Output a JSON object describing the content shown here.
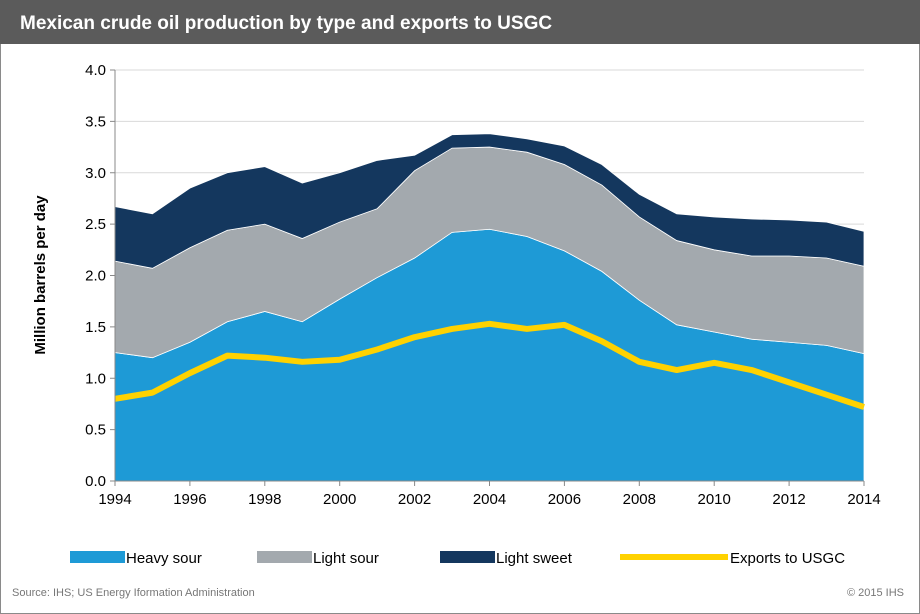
{
  "chart_data": {
    "type": "stacked_area_line",
    "title": "Mexican crude oil production by type and exports to USGC",
    "y_label": "Million barrels per day",
    "source": "Source: IHS; US Energy Iformation Administration",
    "copyright": "© 2015 IHS",
    "x": [
      1994,
      1995,
      1996,
      1997,
      1998,
      1999,
      2000,
      2001,
      2002,
      2003,
      2004,
      2005,
      2006,
      2007,
      2008,
      2009,
      2010,
      2011,
      2012,
      2013,
      2014
    ],
    "xlim": [
      1994,
      2014
    ],
    "xticks": [
      1994,
      1996,
      1998,
      2000,
      2002,
      2004,
      2006,
      2008,
      2010,
      2012,
      2014
    ],
    "ylim": [
      0,
      4
    ],
    "yticks": [
      {
        "value": 0,
        "label": "0.0"
      },
      0.5,
      {
        "value": 1,
        "label": "1.0"
      },
      1.5,
      {
        "value": 2,
        "label": "2.0"
      },
      2.5,
      {
        "value": 3,
        "label": "3.0"
      },
      3.5,
      {
        "value": 4,
        "label": "4.0"
      }
    ],
    "grid": true,
    "series": [
      {
        "name": "Heavy sour",
        "kind": "area",
        "color": "#1e9ad6",
        "values": [
          1.25,
          1.2,
          1.35,
          1.55,
          1.65,
          1.55,
          1.77,
          1.98,
          2.17,
          2.42,
          2.45,
          2.38,
          2.24,
          2.04,
          1.76,
          1.52,
          1.45,
          1.38,
          1.35,
          1.32,
          1.24
        ]
      },
      {
        "name": "Light sour",
        "kind": "area",
        "color": "#a3a9ae",
        "values": [
          0.89,
          0.87,
          0.92,
          0.89,
          0.85,
          0.81,
          0.75,
          0.67,
          0.85,
          0.82,
          0.8,
          0.82,
          0.84,
          0.84,
          0.81,
          0.82,
          0.8,
          0.81,
          0.84,
          0.85,
          0.85
        ]
      },
      {
        "name": "Light sweet",
        "kind": "area",
        "color": "#14375e",
        "values": [
          0.53,
          0.53,
          0.58,
          0.56,
          0.56,
          0.54,
          0.48,
          0.47,
          0.15,
          0.13,
          0.13,
          0.13,
          0.18,
          0.2,
          0.22,
          0.26,
          0.32,
          0.36,
          0.35,
          0.35,
          0.34
        ]
      },
      {
        "name": "Exports to USGC",
        "kind": "line",
        "color": "#ffd200",
        "values": [
          0.8,
          0.86,
          1.05,
          1.22,
          1.2,
          1.16,
          1.18,
          1.28,
          1.4,
          1.48,
          1.53,
          1.48,
          1.52,
          1.36,
          1.16,
          1.08,
          1.15,
          1.08,
          0.96,
          0.84,
          0.72
        ]
      }
    ]
  }
}
